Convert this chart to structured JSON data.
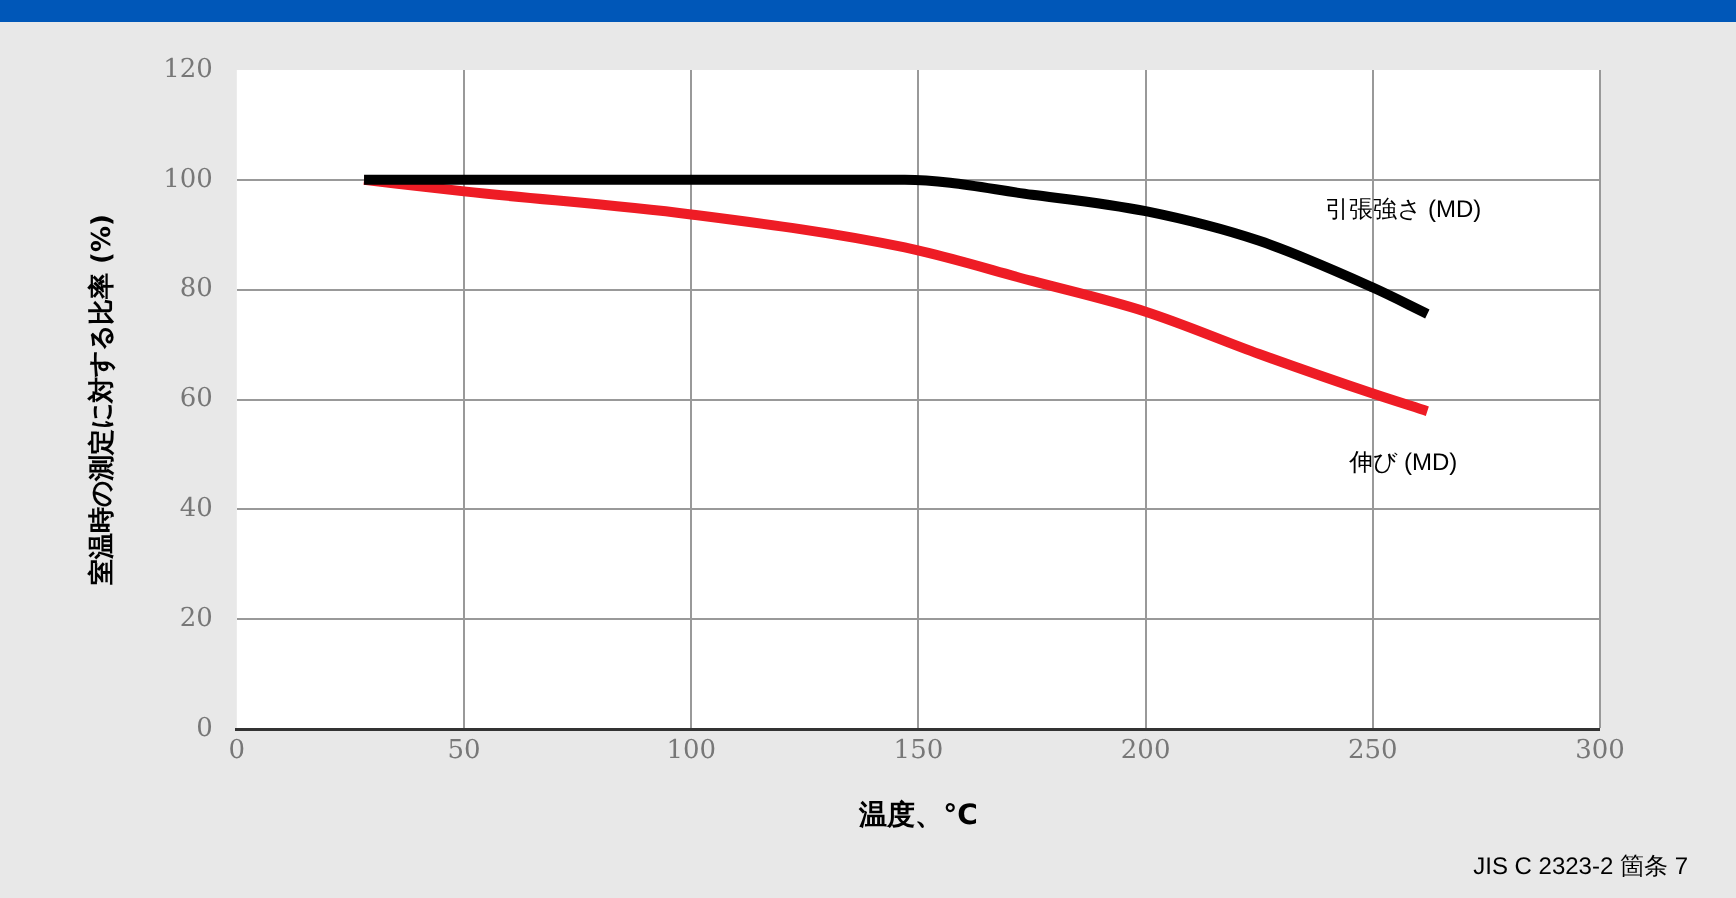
{
  "chart_data": {
    "type": "line",
    "xlabel": "温度、°C",
    "ylabel": "室温時の測定に対する比率 (%)",
    "x": [
      28,
      50,
      100,
      147,
      175,
      200,
      225,
      250,
      262
    ],
    "series": [
      {
        "name": "引張強さ (MD)",
        "color": "#000000",
        "values": [
          100,
          100,
          100,
          100,
          97.3,
          94.3,
          88.9,
          80.4,
          75.6
        ]
      },
      {
        "name": "伸び (MD)",
        "color": "#ee1c25",
        "values": [
          100,
          97.9,
          93.7,
          87.7,
          81.6,
          76.0,
          68.3,
          61.1,
          57.9
        ]
      }
    ],
    "xlim": [
      0,
      300
    ],
    "xticks": [
      0,
      50,
      100,
      150,
      200,
      250,
      300
    ],
    "ylim": [
      0,
      120
    ],
    "yticks": [
      0,
      20,
      40,
      60,
      80,
      100,
      120
    ],
    "grid": true,
    "legend": false,
    "marker": "none",
    "line_style": "solid",
    "annotations": [
      "JIS C 2323-2 箇条 7"
    ]
  }
}
